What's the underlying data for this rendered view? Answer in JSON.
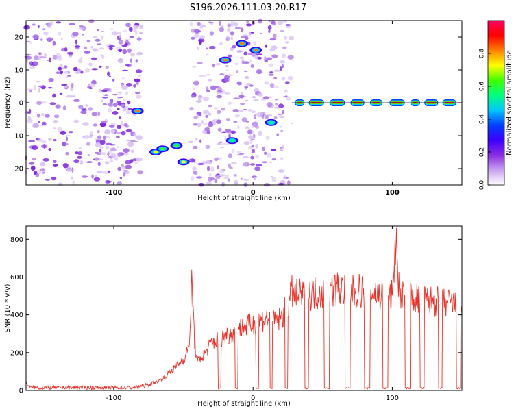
{
  "figure": {
    "title": "S196.2026.111.03.20.R17"
  },
  "chart_data": [
    {
      "type": "heatmap",
      "name": "spectrogram",
      "xlabel": "Height of straight line (km)",
      "ylabel": "Frequency (Hz)",
      "xlim": [
        -163,
        150
      ],
      "ylim": [
        -25,
        25
      ],
      "x_ticks": [
        -100,
        0,
        100
      ],
      "y_ticks": [
        20,
        10,
        0,
        -10,
        -20
      ],
      "colorbar": {
        "label": "Normalized spectral amplitude",
        "range": [
          0,
          1
        ],
        "ticks": [
          "0.0",
          "0.2",
          "0.4",
          "0.6",
          "0.8"
        ],
        "colors": [
          "#ffffff",
          "#c9a2f0",
          "#8a2be2",
          "#3b00ff",
          "#0040ff",
          "#00c8ff",
          "#00ff80",
          "#40ff00",
          "#ffff00",
          "#ff8000",
          "#ff0000",
          "#ff0060"
        ]
      },
      "regions": [
        {
          "name": "noise-left",
          "x": [
            -163,
            -80
          ],
          "freq": [
            -25,
            25
          ],
          "amplitude": 0.25
        },
        {
          "name": "noise-mid",
          "x": [
            -45,
            28
          ],
          "freq": [
            -25,
            25
          ],
          "amplitude": 0.2
        },
        {
          "name": "carrier-tone",
          "x": [
            28,
            150
          ],
          "freq": [
            0,
            0
          ],
          "amplitude": 0.95
        }
      ],
      "features": [
        {
          "x": -83,
          "freq": -2.5,
          "amplitude": 0.85
        },
        {
          "x": -70,
          "freq": -15,
          "amplitude": 0.7
        },
        {
          "x": -65,
          "freq": -14,
          "amplitude": 0.65
        },
        {
          "x": -55,
          "freq": -13,
          "amplitude": 0.6
        },
        {
          "x": -50,
          "freq": -18,
          "amplitude": 0.7
        },
        {
          "x": -20,
          "freq": 13,
          "amplitude": 0.8
        },
        {
          "x": -8,
          "freq": 18,
          "amplitude": 0.85
        },
        {
          "x": 2,
          "freq": 16,
          "amplitude": 0.8
        },
        {
          "x": -15,
          "freq": -11.5,
          "amplitude": 0.5
        },
        {
          "x": 13,
          "freq": -6,
          "amplitude": 0.5
        }
      ],
      "tone_segments": [
        {
          "from": 30,
          "to": 37
        },
        {
          "from": 40,
          "to": 51
        },
        {
          "from": 55,
          "to": 66
        },
        {
          "from": 70,
          "to": 80
        },
        {
          "from": 84,
          "to": 93
        },
        {
          "from": 98,
          "to": 109
        },
        {
          "from": 113,
          "to": 120
        },
        {
          "from": 123,
          "to": 133
        },
        {
          "from": 136,
          "to": 146
        }
      ]
    },
    {
      "type": "line",
      "name": "snr",
      "xlabel": "Height of straight line (km)",
      "ylabel": "SNR (10 * v/v)",
      "xlim": [
        -163,
        150
      ],
      "ylim": [
        0,
        870
      ],
      "x_ticks": [
        -100,
        0,
        100
      ],
      "y_ticks": [
        0,
        200,
        400,
        600,
        800
      ],
      "color": "#e8332a",
      "series": [
        {
          "name": "SNR",
          "x": [
            -163,
            -160,
            -150,
            -130,
            -100,
            -85,
            -75,
            -65,
            -55,
            -48,
            -45,
            -44,
            -42,
            -40,
            -35,
            -30,
            -25,
            -20,
            -15,
            -10,
            -5,
            0,
            5,
            10,
            15,
            20,
            25,
            28,
            30,
            40,
            50,
            60,
            70,
            80,
            90,
            100,
            103,
            104,
            105,
            110,
            120,
            130,
            140,
            150
          ],
          "values": [
            40,
            15,
            15,
            15,
            15,
            15,
            30,
            60,
            130,
            180,
            300,
            610,
            260,
            150,
            190,
            250,
            270,
            290,
            300,
            330,
            340,
            350,
            370,
            380,
            360,
            380,
            450,
            520,
            500,
            510,
            520,
            540,
            520,
            530,
            510,
            500,
            860,
            620,
            520,
            500,
            480,
            470,
            460,
            450
          ]
        }
      ],
      "dropouts": [
        {
          "from": -25,
          "to": -23
        },
        {
          "from": -13,
          "to": -11
        },
        {
          "from": 2,
          "to": 4
        },
        {
          "from": 12,
          "to": 14
        },
        {
          "from": 23,
          "to": 25
        },
        {
          "from": 37,
          "to": 40
        },
        {
          "from": 51,
          "to": 55
        },
        {
          "from": 66,
          "to": 70
        },
        {
          "from": 80,
          "to": 84
        },
        {
          "from": 93,
          "to": 97
        },
        {
          "from": 109,
          "to": 113
        },
        {
          "from": 120,
          "to": 123
        },
        {
          "from": 133,
          "to": 136
        },
        {
          "from": 146,
          "to": 149
        }
      ]
    }
  ]
}
